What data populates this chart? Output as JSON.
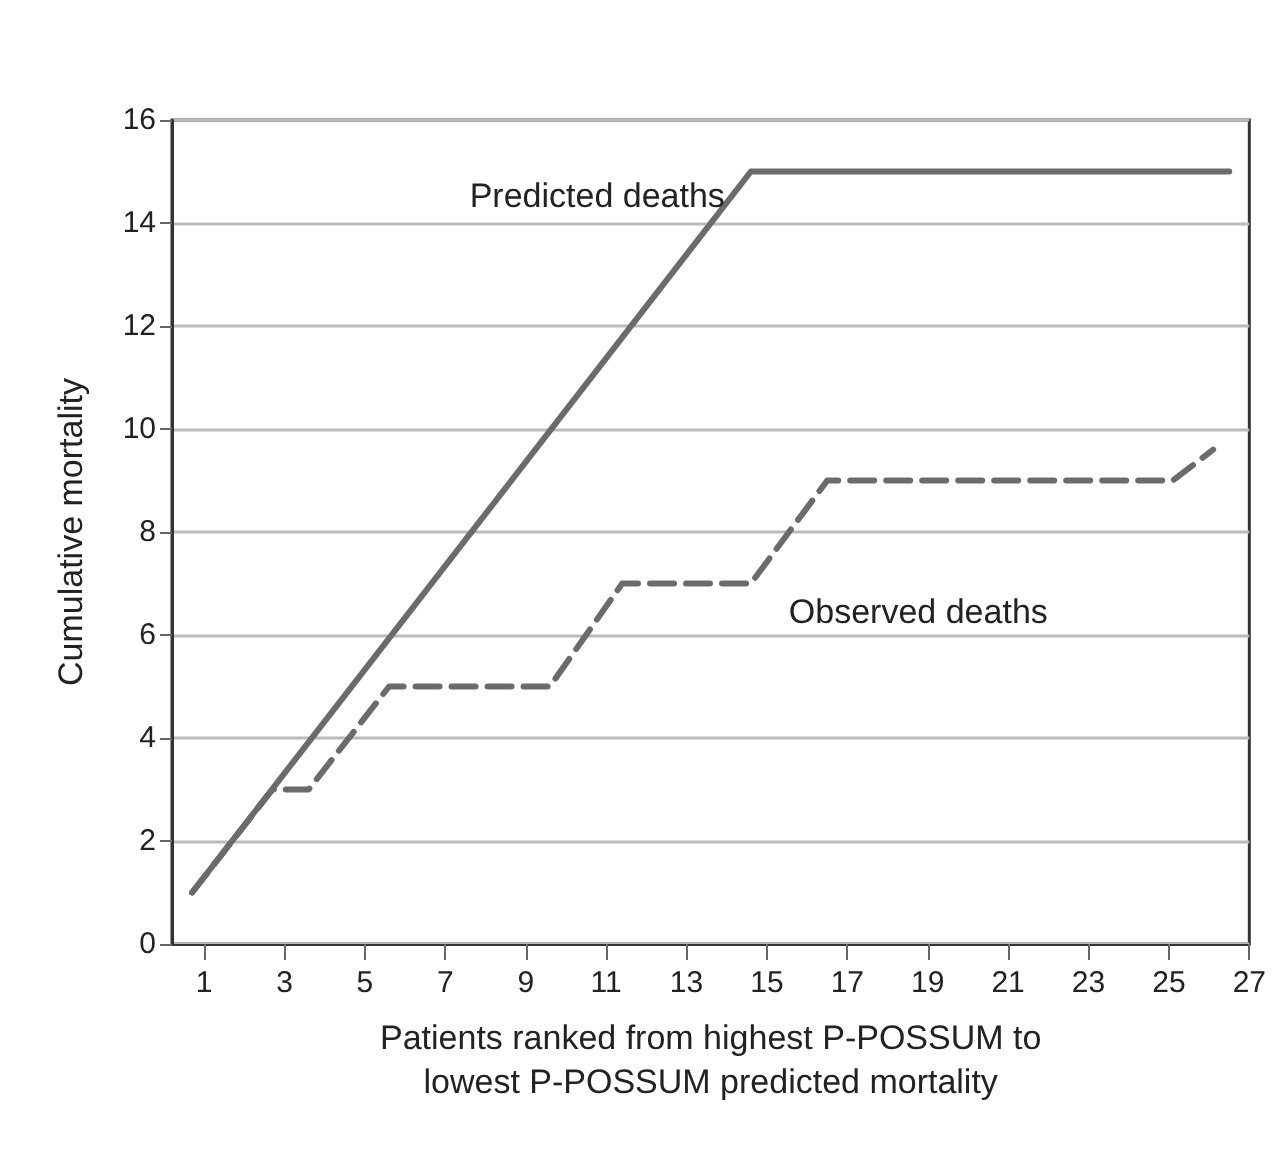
{
  "chart_data": {
    "type": "line",
    "xlabel": "Patients ranked from highest P-POSSUM to\nlowest P-POSSUM predicted mortality",
    "ylabel": "Cumulative mortality",
    "series": [
      {
        "name": "Predicted deaths",
        "color": "#6b6b6b",
        "line_style": "solid",
        "x": [
          0.7,
          14.6,
          26.5
        ],
        "values": [
          1,
          15,
          15
        ]
      },
      {
        "name": "Observed deaths",
        "color": "#6b6b6b",
        "line_style": "dashed",
        "x": [
          0.7,
          2.7,
          3.6,
          5.6,
          9.6,
          11.4,
          14.6,
          16.5,
          25.1,
          26.1
        ],
        "values": [
          1,
          3,
          3,
          5,
          5,
          7,
          7,
          9,
          9,
          9.6
        ]
      }
    ],
    "xlim": [
      0.2,
      27
    ],
    "xticks": [
      1,
      3,
      5,
      7,
      9,
      11,
      13,
      15,
      17,
      19,
      21,
      23,
      25,
      27
    ],
    "ylim": [
      0,
      16
    ],
    "yticks": [
      0,
      2,
      4,
      6,
      8,
      10,
      12,
      14,
      16
    ],
    "grid": "y",
    "marker": "none"
  }
}
